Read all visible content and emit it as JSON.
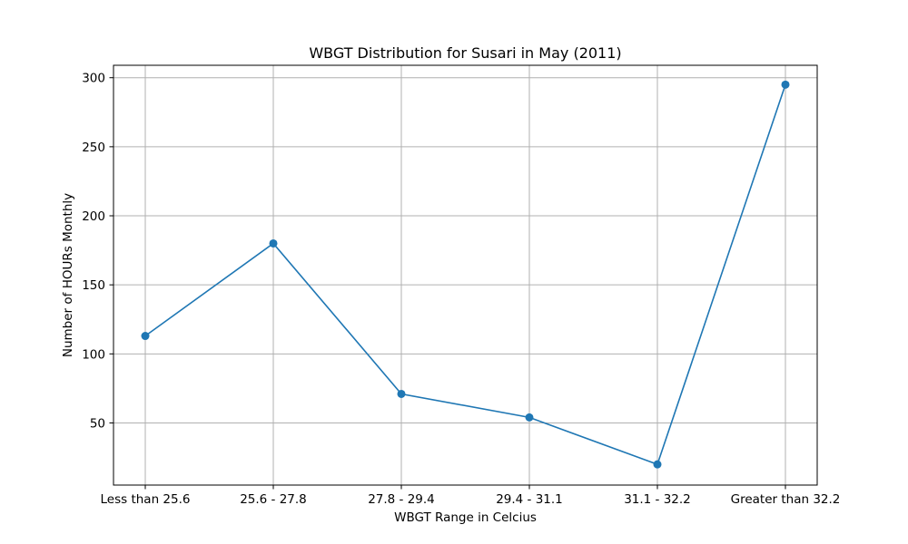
{
  "chart_data": {
    "type": "line",
    "title": "WBGT Distribution for Susari in May (2011)",
    "xlabel": "WBGT Range in Celcius",
    "ylabel": "Number of HOURs Monthly",
    "categories": [
      "Less than 25.6",
      "25.6 - 27.8",
      "27.8 - 29.4",
      "29.4 - 31.1",
      "31.1 - 32.2",
      "Greater than 32.2"
    ],
    "series": [
      {
        "values": [
          113,
          180,
          71,
          54,
          20,
          295
        ],
        "color": "#1f77b4",
        "marker": "circle"
      }
    ],
    "ylim": [
      5,
      309
    ],
    "yticks": [
      50,
      100,
      150,
      200,
      250,
      300
    ],
    "grid": true,
    "legend": "none"
  }
}
